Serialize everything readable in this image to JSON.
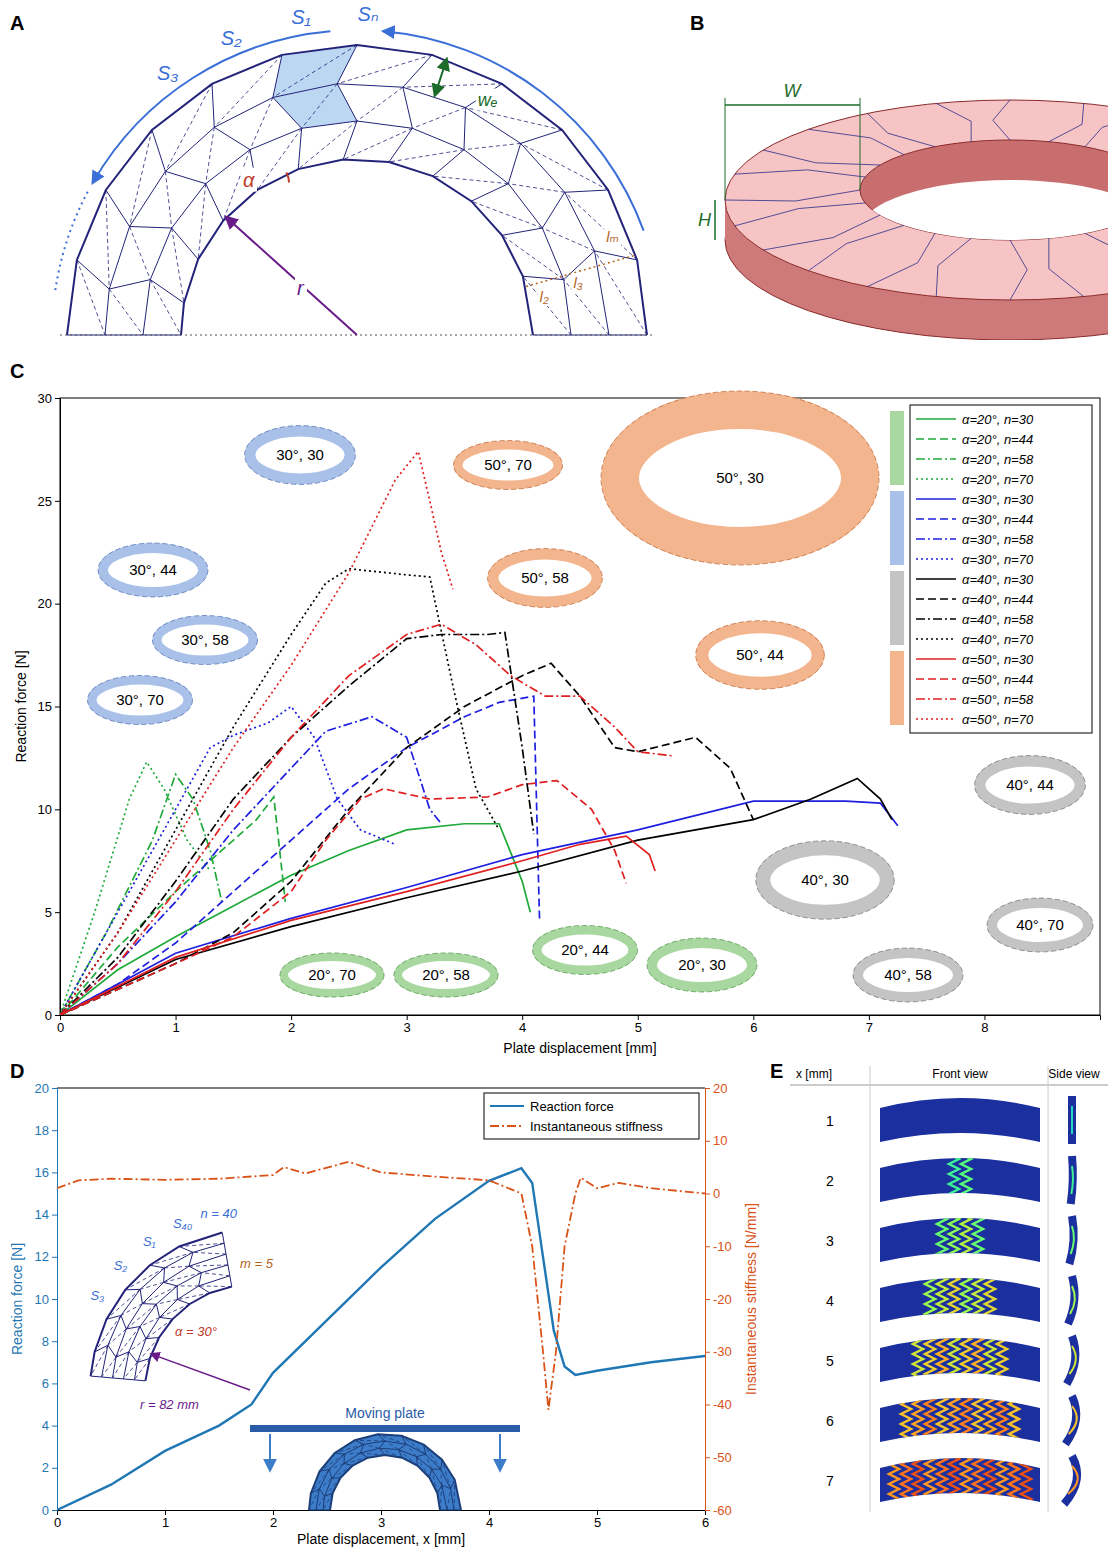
{
  "chart_data": [
    {
      "label": "C",
      "type": "line",
      "x_label": "Plate displacement [mm]",
      "y_label": "Reaction force [N]",
      "xlim": [
        0,
        9
      ],
      "xticks": [
        0,
        1,
        2,
        3,
        4,
        5,
        6,
        7,
        8
      ],
      "ylim": [
        0,
        30
      ],
      "yticks": [
        0,
        5,
        10,
        15,
        20,
        25,
        30
      ],
      "legend": "upper right",
      "series": [
        {
          "name": "α=20°, n=30",
          "color": "#1faa3a",
          "line_style": "solid",
          "x": [
            0,
            0.5,
            1,
            1.5,
            2,
            2.5,
            3,
            3.5,
            3.8,
            4,
            4.07
          ],
          "values": [
            0,
            2.2,
            3.8,
            5.3,
            6.8,
            8,
            9,
            9.3,
            9.3,
            6.5,
            5
          ]
        },
        {
          "name": "α=20°, n=44",
          "color": "#1faa3a",
          "line_style": "dashed",
          "x": [
            0,
            0.5,
            1,
            1.4,
            1.7,
            1.85,
            1.95
          ],
          "values": [
            0,
            3.3,
            6,
            8,
            9.5,
            10.6,
            5.5
          ]
        },
        {
          "name": "α=20°, n=58",
          "color": "#1faa3a",
          "line_style": "dashdot",
          "x": [
            0,
            0.4,
            0.8,
            1,
            1.15,
            1.3,
            1.4
          ],
          "values": [
            0,
            4,
            8.5,
            11.7,
            10.5,
            8,
            5.5
          ]
        },
        {
          "name": "α=20°, n=70",
          "color": "#1faa3a",
          "line_style": "dotted",
          "x": [
            0,
            0.3,
            0.6,
            0.75,
            0.9,
            1.1,
            1.3
          ],
          "values": [
            0,
            5,
            10.5,
            12.3,
            11,
            8.5,
            7
          ]
        },
        {
          "name": "α=30°, n=30",
          "color": "#1f1fe0",
          "line_style": "solid",
          "x": [
            0,
            1,
            2,
            3,
            4,
            5,
            6,
            6.8,
            7.1,
            7.25
          ],
          "values": [
            0,
            3,
            4.7,
            6.2,
            7.8,
            9,
            10.4,
            10.4,
            10.3,
            9.2
          ]
        },
        {
          "name": "α=30°, n=44",
          "color": "#1f1fe0",
          "line_style": "dashed",
          "x": [
            0,
            0.5,
            1,
            1.5,
            2,
            2.5,
            3,
            3.5,
            3.8,
            4.1,
            4.15
          ],
          "values": [
            0,
            1.5,
            3.5,
            6,
            8.5,
            11,
            13,
            14.5,
            15.2,
            15.5,
            4.6
          ]
        },
        {
          "name": "α=30°, n=58",
          "color": "#1f1fe0",
          "line_style": "dashdot",
          "x": [
            0,
            0.5,
            1,
            1.5,
            2,
            2.3,
            2.7,
            3,
            3.2,
            3.3
          ],
          "values": [
            0,
            2.5,
            5.5,
            9,
            12,
            13.8,
            14.5,
            13.5,
            10,
            9.3
          ]
        },
        {
          "name": "α=30°, n=70",
          "color": "#1f1fe0",
          "line_style": "dotted",
          "x": [
            0,
            0.5,
            1,
            1.3,
            1.5,
            1.8,
            2,
            2.2,
            2.4,
            2.6,
            2.9
          ],
          "values": [
            0,
            5,
            10,
            13,
            13.6,
            14.2,
            15,
            13.5,
            10.5,
            9,
            8.3
          ]
        },
        {
          "name": "α=40°, n=30",
          "color": "#000000",
          "line_style": "solid",
          "x": [
            0,
            1,
            2,
            3,
            4,
            5,
            6,
            6.5,
            6.9,
            7.1,
            7.2
          ],
          "values": [
            0,
            2.7,
            4.3,
            5.7,
            7,
            8.5,
            9.5,
            10.5,
            11.5,
            10.5,
            9.5
          ]
        },
        {
          "name": "α=40°, n=44",
          "color": "#000000",
          "line_style": "dashed",
          "x": [
            0,
            1,
            1.5,
            2,
            2.5,
            3,
            3.5,
            4,
            4.25,
            4.5,
            4.8,
            5,
            5.5,
            5.8,
            6
          ],
          "values": [
            0,
            2.5,
            4,
            6.5,
            10,
            13,
            15,
            16.5,
            17.1,
            15.5,
            13,
            12.8,
            13.5,
            12,
            9.5
          ]
        },
        {
          "name": "α=40°, n=58",
          "color": "#000000",
          "line_style": "dashdot",
          "x": [
            0,
            0.5,
            1,
            1.5,
            2,
            2.5,
            3,
            3.3,
            3.7,
            3.85,
            4,
            4.1
          ],
          "values": [
            0,
            2.8,
            6.5,
            10.5,
            13.5,
            16,
            18.3,
            18.5,
            18.5,
            18.6,
            13,
            8.8
          ]
        },
        {
          "name": "α=40°, n=70",
          "color": "#000000",
          "line_style": "dotted",
          "x": [
            0,
            0.5,
            1,
            1.5,
            2,
            2.3,
            2.5,
            3,
            3.2,
            3.4,
            3.6,
            3.8
          ],
          "values": [
            0,
            4,
            9,
            14,
            18.5,
            21,
            21.7,
            21.4,
            21.3,
            16,
            11,
            9
          ]
        },
        {
          "name": "α=50°, n=30",
          "color": "#e02020",
          "line_style": "solid",
          "x": [
            0,
            1,
            2,
            3,
            4,
            4.5,
            4.9,
            5.1,
            5.15
          ],
          "values": [
            0,
            2.8,
            4.6,
            6,
            7.5,
            8.3,
            8.7,
            7.8,
            7
          ]
        },
        {
          "name": "α=50°, n=44",
          "color": "#e02020",
          "line_style": "dashed",
          "x": [
            0,
            1,
            1.5,
            2,
            2.3,
            2.6,
            2.8,
            3.2,
            3.7,
            4,
            4.3,
            4.6,
            4.8,
            4.9
          ],
          "values": [
            0,
            2.5,
            3.8,
            6,
            8.5,
            10.5,
            11,
            10.5,
            10.6,
            11.2,
            11.4,
            10,
            8,
            6.4
          ]
        },
        {
          "name": "α=50°, n=58",
          "color": "#e02020",
          "line_style": "dashdot",
          "x": [
            0,
            0.5,
            1,
            1.5,
            2,
            2.5,
            3,
            3.3,
            3.6,
            3.9,
            4.2,
            4.5,
            4.8,
            5,
            5.3
          ],
          "values": [
            0,
            2.5,
            6,
            10,
            13.5,
            16.5,
            18.5,
            19,
            18,
            16.5,
            15.5,
            15.5,
            14,
            12.8,
            12.6
          ]
        },
        {
          "name": "α=50°, n=70",
          "color": "#e02020",
          "line_style": "dotted",
          "x": [
            0,
            0.5,
            1,
            1.5,
            2,
            2.5,
            2.9,
            3.1,
            3.2,
            3.3,
            3.4
          ],
          "values": [
            0,
            4,
            8.5,
            13,
            17,
            21.5,
            26,
            27.4,
            25,
            22.5,
            20.7
          ]
        }
      ],
      "annotations": [
        "30°, 30",
        "30°, 44",
        "30°, 58",
        "30°, 70",
        "50°, 70",
        "50°, 30",
        "50°, 58",
        "50°, 44",
        "20°, 70",
        "20°, 58",
        "20°, 44",
        "20°, 30",
        "40°, 30",
        "40°, 44",
        "40°, 70",
        "40°, 58"
      ]
    },
    {
      "label": "D",
      "type": "line",
      "x_label": "Plate displacement, x [mm]",
      "y_label": "Reaction force [N]",
      "y2_label": "Instantaneous stiffness [N/mm]",
      "xlim": [
        0,
        6
      ],
      "xticks": [
        0,
        1,
        2,
        3,
        4,
        5,
        6
      ],
      "ylim": [
        0,
        20
      ],
      "yticks": [
        0,
        2,
        4,
        6,
        8,
        10,
        12,
        14,
        16,
        18,
        20
      ],
      "y2lim": [
        -60,
        20
      ],
      "y2ticks": [
        -60,
        -50,
        -40,
        -30,
        -20,
        -10,
        0,
        10,
        20
      ],
      "legend": "upper right",
      "series": [
        {
          "name": "Reaction force",
          "color": "#1f77b4",
          "line_style": "solid",
          "x": [
            0,
            0.5,
            1,
            1.5,
            1.8,
            2,
            2.5,
            3,
            3.5,
            4,
            4.3,
            4.4,
            4.5,
            4.6,
            4.7,
            4.8,
            5,
            5.5,
            6
          ],
          "values": [
            0,
            1.2,
            2.8,
            4,
            5,
            6.5,
            9,
            11.5,
            13.8,
            15.6,
            16.2,
            15.5,
            12,
            8.5,
            6.8,
            6.4,
            6.6,
            7,
            7.3
          ]
        },
        {
          "name": "Instantaneous stiffness",
          "color": "#d95319",
          "line_style": "dashdot",
          "axis": "y2",
          "x": [
            0,
            0.2,
            0.5,
            1,
            1.5,
            2,
            2.1,
            2.3,
            2.7,
            3,
            3.5,
            4,
            4.3,
            4.4,
            4.5,
            4.55,
            4.62,
            4.7,
            4.8,
            4.85,
            5,
            5.2,
            5.5,
            6
          ],
          "values": [
            1,
            2.5,
            2.8,
            2.6,
            2.8,
            3.5,
            5,
            3.8,
            6,
            4,
            3.2,
            2.5,
            0,
            -10,
            -30,
            -41,
            -30,
            -10,
            0,
            3,
            1,
            2,
            1,
            0
          ]
        }
      ],
      "annotations": [
        "n = 40",
        "S₁",
        "S₂",
        "S₃",
        "S₄₀",
        "m = 5",
        "α = 30°",
        "r = 82 mm",
        "Moving plate"
      ]
    }
  ],
  "panel_a": {
    "label": "A",
    "labels": [
      "S₁",
      "S₂",
      "S₃",
      "Sₙ",
      "wₑ",
      "α",
      "r",
      "l₂",
      "l₃",
      "lₘ"
    ]
  },
  "panel_b": {
    "label": "B",
    "labels": [
      "W",
      "H"
    ]
  },
  "panel_e": {
    "label": "E",
    "headers": [
      "x [mm]",
      "Front view",
      "Side view"
    ],
    "rows": [
      1,
      2,
      3,
      4,
      5,
      6,
      7
    ]
  }
}
